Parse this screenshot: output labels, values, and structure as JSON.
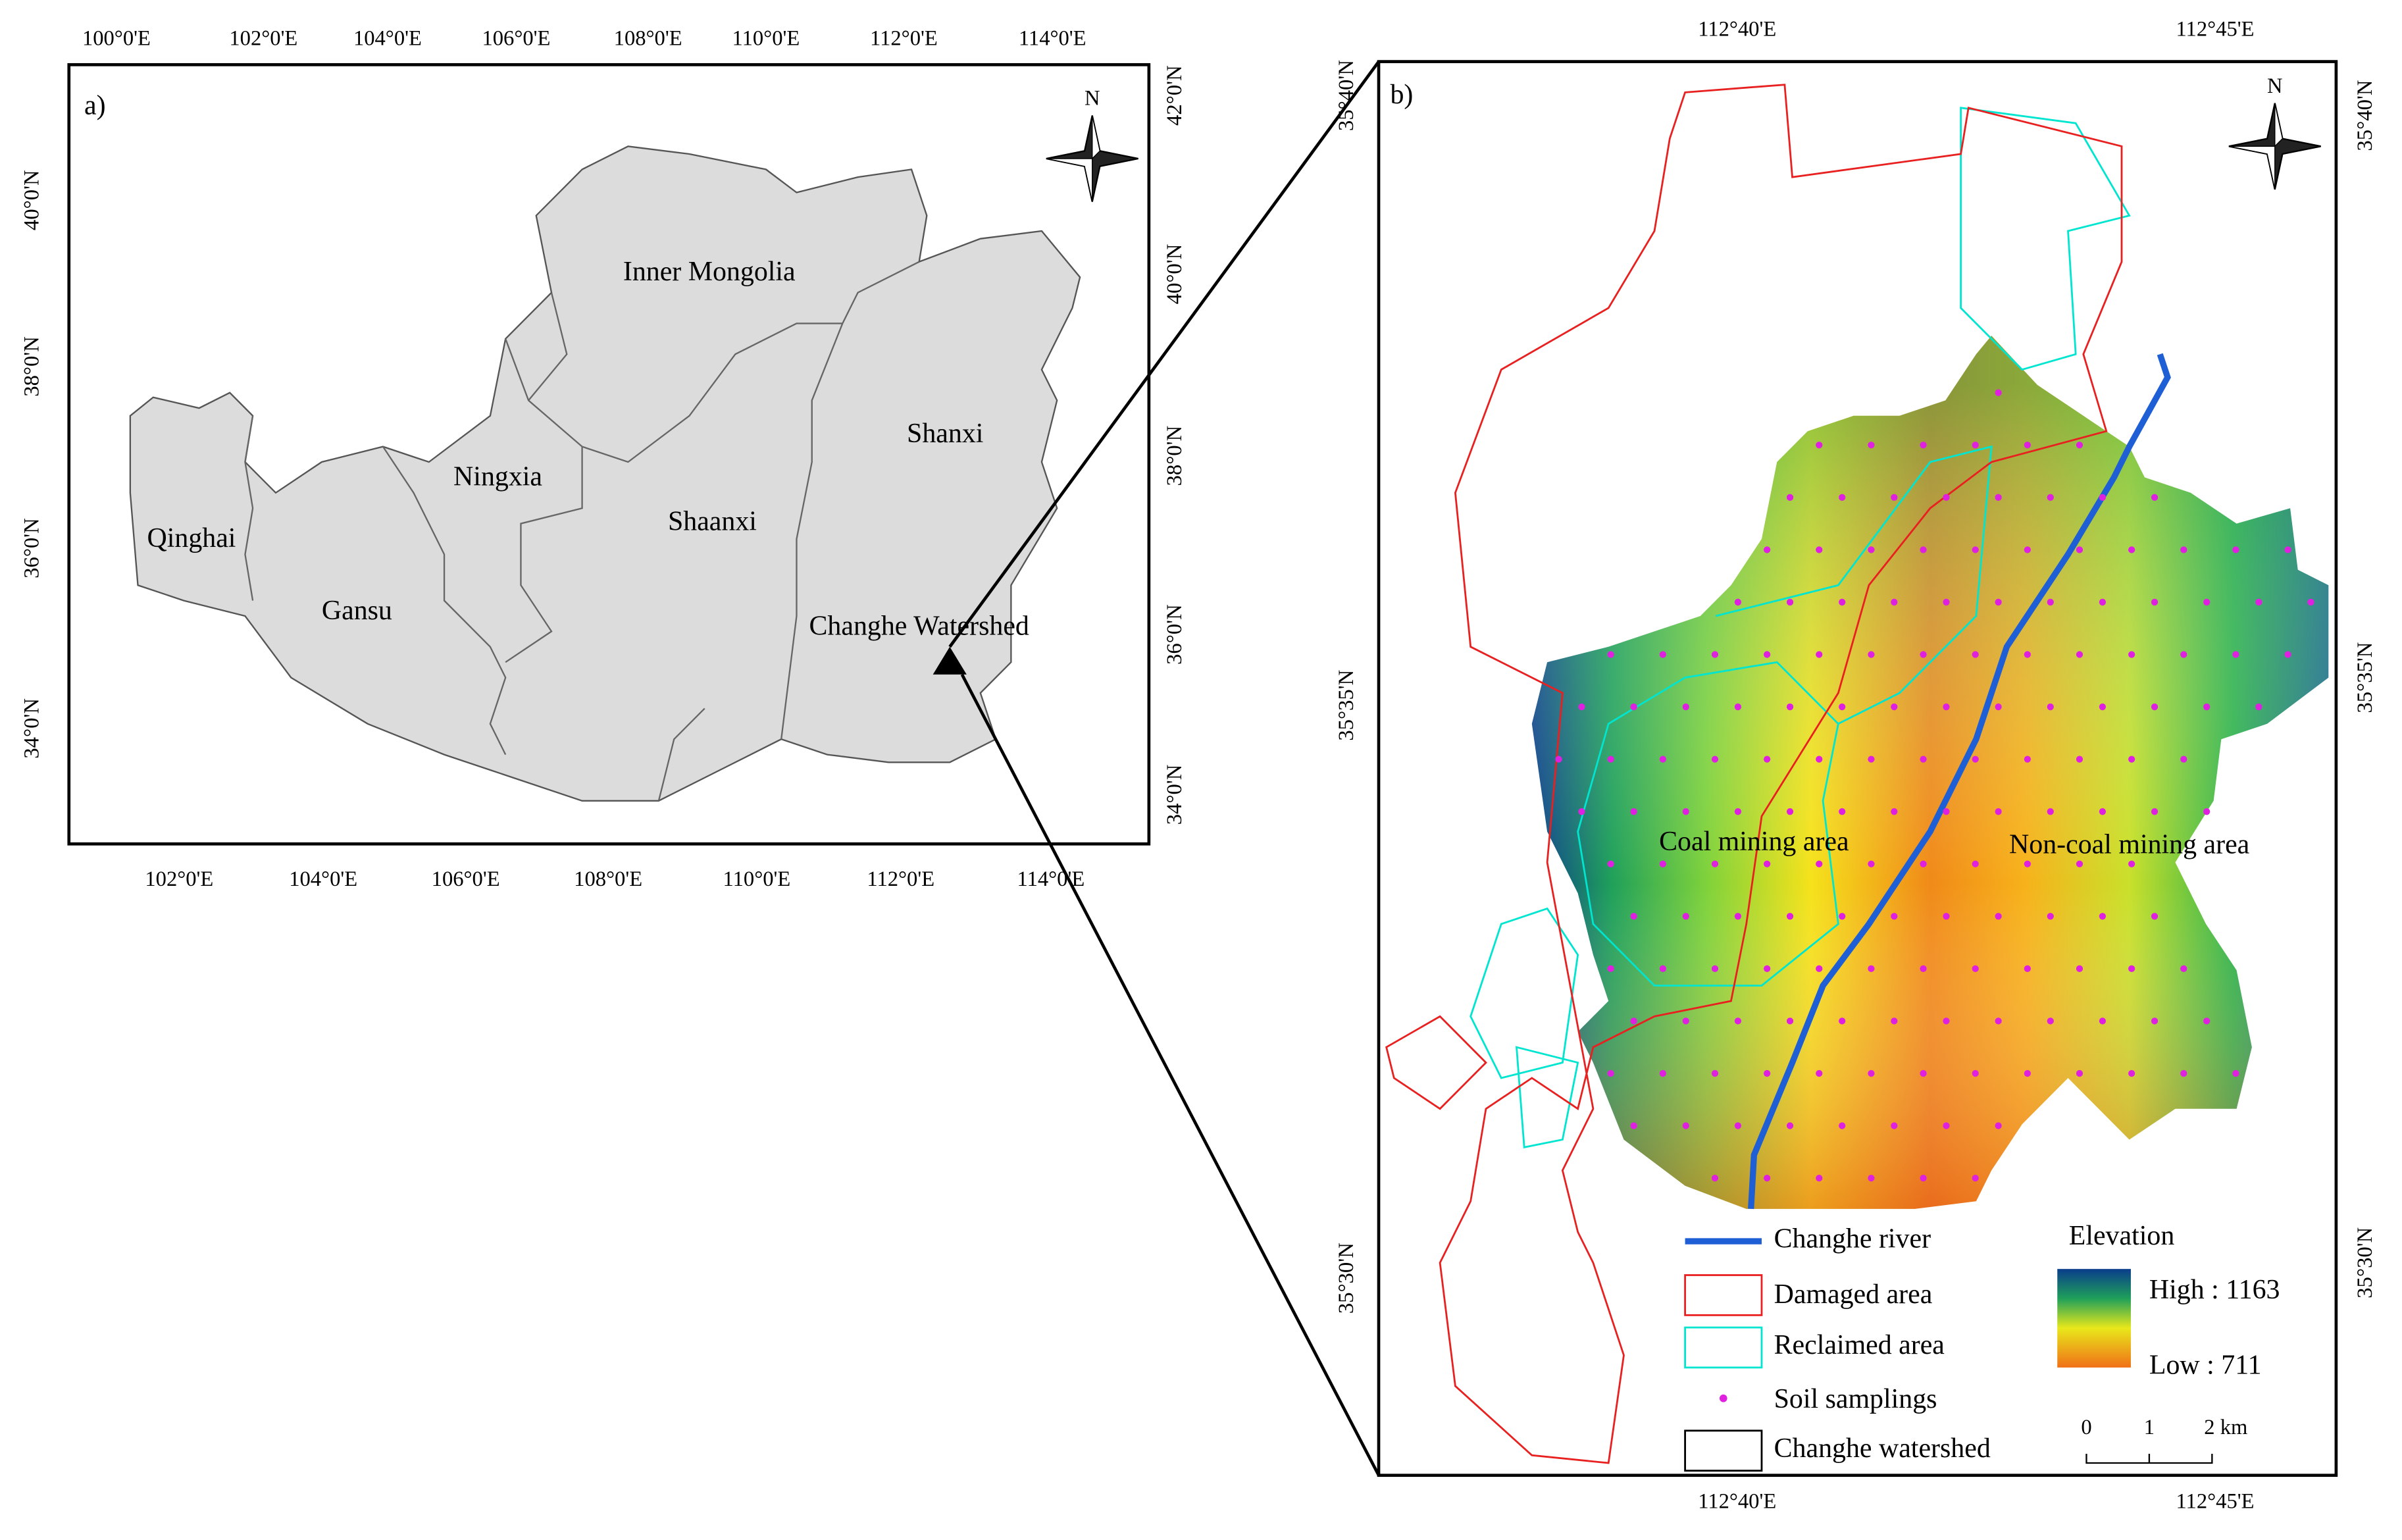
{
  "panel_a": {
    "label": "a)",
    "north": "N",
    "top_ticks": [
      "100°0'E",
      "102°0'E",
      "104°0'E",
      "106°0'E",
      "108°0'E",
      "110°0'E",
      "112°0'E",
      "114°0'E"
    ],
    "bottom_ticks": [
      "102°0'E",
      "104°0'E",
      "106°0'E",
      "108°0'E",
      "110°0'E",
      "112°0'E",
      "114°0'E"
    ],
    "left_ticks": [
      "40°0'N",
      "38°0'N",
      "36°0'N",
      "34°0'N"
    ],
    "right_ticks": [
      "42°0'N",
      "40°0'N",
      "38°0'N",
      "36°0'N",
      "34°0'N"
    ],
    "regions": [
      "Inner Mongolia",
      "Ningxia",
      "Shaanxi",
      "Shanxi",
      "Qinghai",
      "Gansu"
    ],
    "site": "Changhe Watershed"
  },
  "panel_b": {
    "label": "b)",
    "north": "N",
    "top_ticks": [
      "112°40'E",
      "112°45'E"
    ],
    "bottom_ticks": [
      "112°40'E",
      "112°45'E"
    ],
    "left_ticks": [
      "35°40'N",
      "35°35'N",
      "35°30'N"
    ],
    "right_ticks": [
      "35°40'N",
      "35°35'N",
      "35°30'N"
    ],
    "annotations": [
      "Coal mining area",
      "Non-coal mining area"
    ],
    "legend": [
      "Changhe river",
      "Damaged area",
      "Reclaimed area",
      "Soil samplings",
      "Changhe watershed"
    ],
    "elevation_title": "Elevation",
    "elevation_high": "High : 1163",
    "elevation_low": "Low : 711",
    "scale_labels": [
      "0",
      "1",
      "2 km"
    ]
  }
}
